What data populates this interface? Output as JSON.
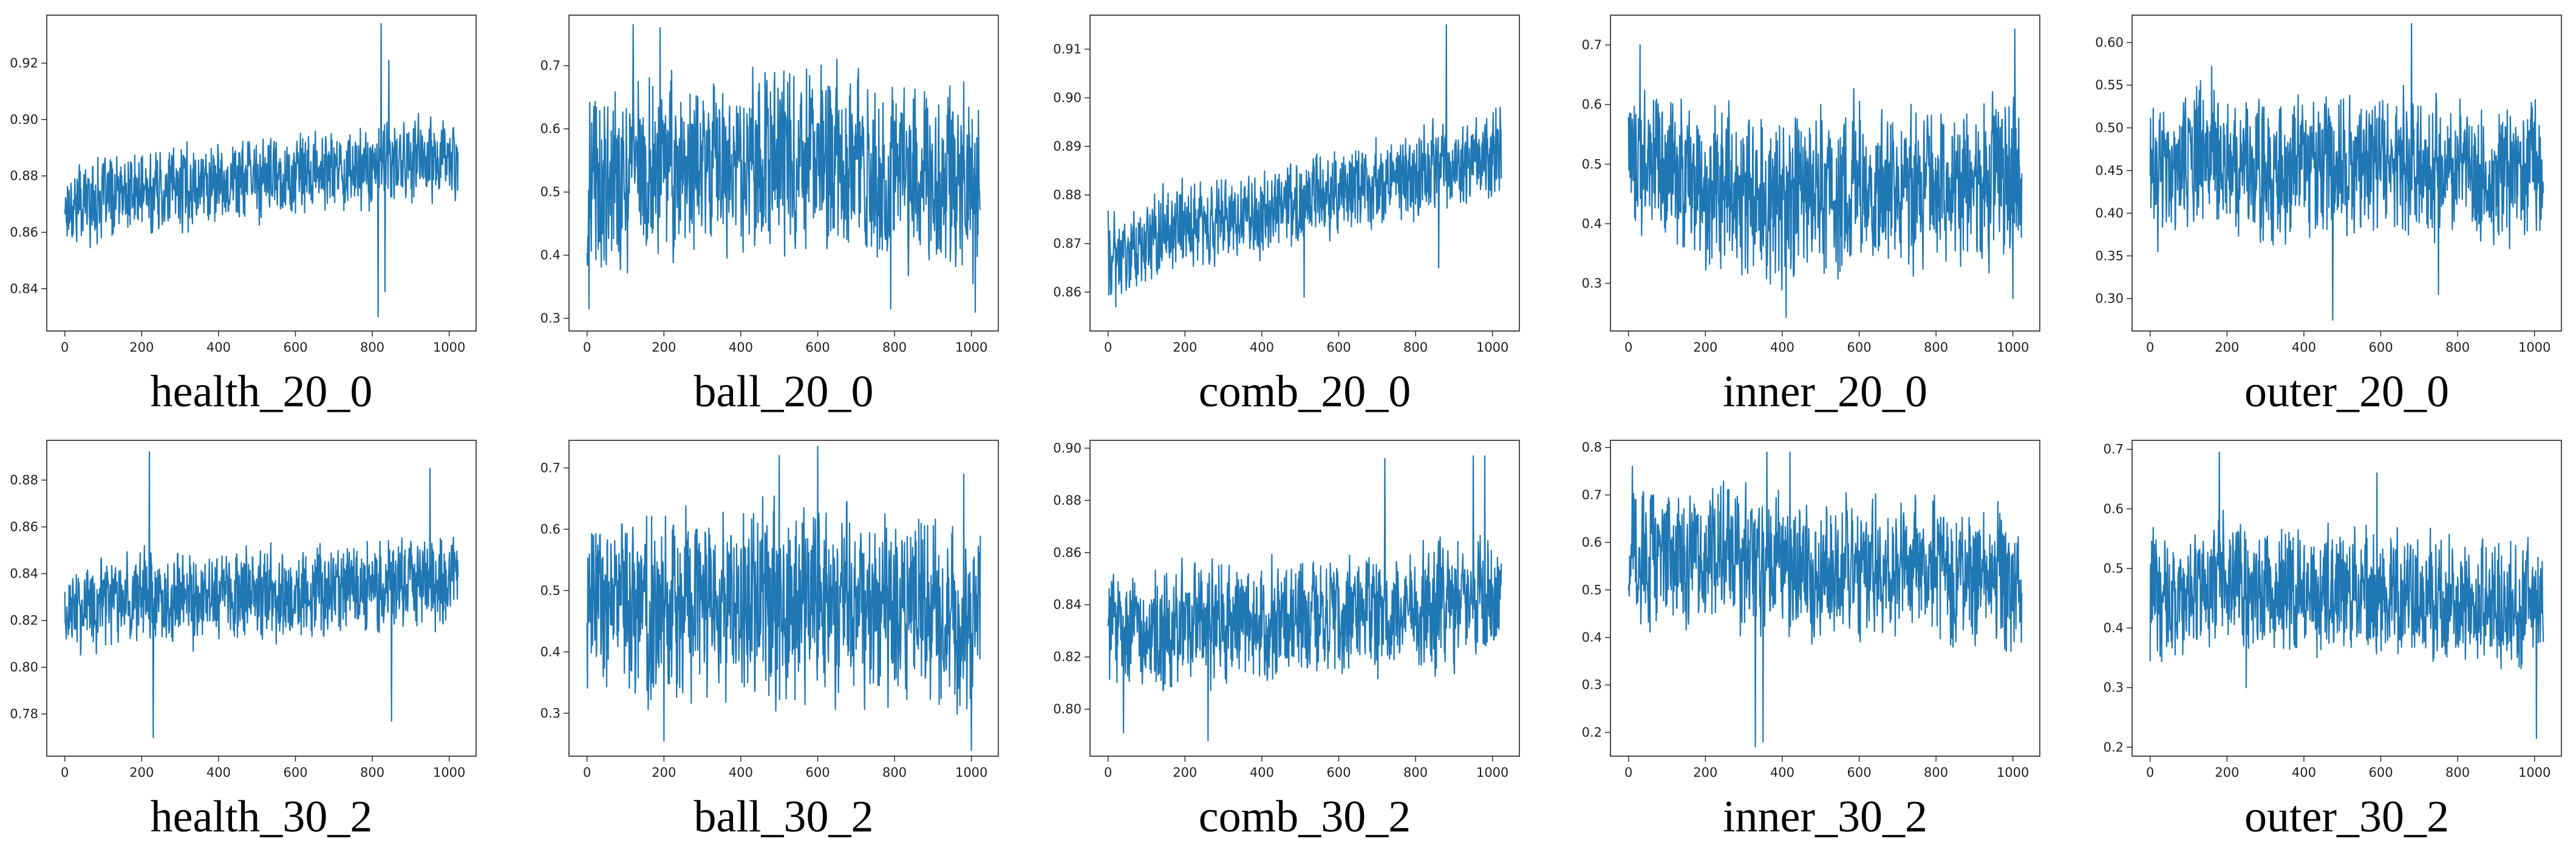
{
  "figure": {
    "line_color": "#1f77b4",
    "layout": "2 rows x 5 columns"
  },
  "chart_data": [
    {
      "type": "line",
      "title": "health_20_0",
      "x_range": [
        0,
        1023
      ],
      "xticks": [
        "0",
        "200",
        "400",
        "600",
        "800",
        "1000"
      ],
      "yticks": [
        "0.84",
        "0.86",
        "0.88",
        "0.90",
        "0.92"
      ],
      "ylim": [
        0.825,
        0.937
      ],
      "series": [
        {
          "name": "health_20_0",
          "trend": [
            [
              0,
              0.87
            ],
            [
              200,
              0.874
            ],
            [
              400,
              0.878
            ],
            [
              600,
              0.88
            ],
            [
              800,
              0.884
            ],
            [
              1000,
              0.886
            ],
            [
              1023,
              0.887
            ]
          ],
          "amplitude": 0.018,
          "spikes": [
            [
              823,
              0.934
            ],
            [
              815,
              0.83
            ],
            [
              843,
              0.921
            ],
            [
              833,
              0.839
            ]
          ]
        }
      ]
    },
    {
      "type": "line",
      "title": "ball_20_0",
      "x_range": [
        0,
        1023
      ],
      "xticks": [
        "0",
        "200",
        "400",
        "600",
        "800",
        "1000"
      ],
      "yticks": [
        "0.3",
        "0.4",
        "0.5",
        "0.6",
        "0.7"
      ],
      "ylim": [
        0.28,
        0.78
      ],
      "series": [
        {
          "name": "ball_20_0",
          "trend": [
            [
              0,
              0.5
            ],
            [
              200,
              0.55
            ],
            [
              400,
              0.54
            ],
            [
              600,
              0.55
            ],
            [
              800,
              0.53
            ],
            [
              1000,
              0.52
            ],
            [
              1023,
              0.52
            ]
          ],
          "amplitude": 0.18,
          "spikes": [
            [
              120,
              0.765
            ],
            [
              190,
              0.76
            ],
            [
              5,
              0.315
            ],
            [
              790,
              0.315
            ],
            [
              1010,
              0.31
            ],
            [
              650,
              0.71
            ]
          ]
        }
      ]
    },
    {
      "type": "line",
      "title": "comb_20_0",
      "x_range": [
        0,
        1023
      ],
      "xticks": [
        "0",
        "200",
        "400",
        "600",
        "800",
        "1000"
      ],
      "yticks": [
        "0.86",
        "0.87",
        "0.88",
        "0.89",
        "0.90",
        "0.91"
      ],
      "ylim": [
        0.852,
        0.917
      ],
      "series": [
        {
          "name": "comb_20_0",
          "trend": [
            [
              0,
              0.867
            ],
            [
              200,
              0.874
            ],
            [
              400,
              0.877
            ],
            [
              600,
              0.881
            ],
            [
              800,
              0.884
            ],
            [
              1000,
              0.889
            ],
            [
              1023,
              0.89
            ]
          ],
          "amplitude": 0.011,
          "spikes": [
            [
              880,
              0.915
            ],
            [
              20,
              0.857
            ],
            [
              510,
              0.859
            ],
            [
              860,
              0.865
            ]
          ]
        }
      ]
    },
    {
      "type": "line",
      "title": "inner_20_0",
      "x_range": [
        0,
        1023
      ],
      "xticks": [
        "0",
        "200",
        "400",
        "600",
        "800",
        "1000"
      ],
      "yticks": [
        "0.3",
        "0.4",
        "0.5",
        "0.6",
        "0.7"
      ],
      "ylim": [
        0.22,
        0.75
      ],
      "series": [
        {
          "name": "inner_20_0",
          "trend": [
            [
              0,
              0.5
            ],
            [
              200,
              0.46
            ],
            [
              400,
              0.44
            ],
            [
              600,
              0.47
            ],
            [
              800,
              0.45
            ],
            [
              1000,
              0.47
            ],
            [
              1023,
              0.47
            ]
          ],
          "amplitude": 0.17,
          "spikes": [
            [
              1005,
              0.727
            ],
            [
              30,
              0.7
            ],
            [
              410,
              0.243
            ],
            [
              1000,
              0.275
            ],
            [
              500,
              0.6
            ]
          ]
        }
      ]
    },
    {
      "type": "line",
      "title": "outer_20_0",
      "x_range": [
        0,
        1023
      ],
      "xticks": [
        "0",
        "200",
        "400",
        "600",
        "800",
        "1000"
      ],
      "yticks": [
        "0.30",
        "0.35",
        "0.40",
        "0.45",
        "0.50",
        "0.55",
        "0.60"
      ],
      "ylim": [
        0.262,
        0.632
      ],
      "series": [
        {
          "name": "outer_20_0",
          "trend": [
            [
              0,
              0.44
            ],
            [
              150,
              0.47
            ],
            [
              300,
              0.45
            ],
            [
              500,
              0.46
            ],
            [
              700,
              0.46
            ],
            [
              850,
              0.44
            ],
            [
              1023,
              0.45
            ]
          ],
          "amplitude": 0.1,
          "spikes": [
            [
              680,
              0.622
            ],
            [
              160,
              0.572
            ],
            [
              475,
              0.275
            ],
            [
              20,
              0.355
            ],
            [
              750,
              0.305
            ]
          ]
        }
      ]
    },
    {
      "type": "line",
      "title": "health_30_2",
      "x_range": [
        0,
        1023
      ],
      "xticks": [
        "0",
        "200",
        "400",
        "600",
        "800",
        "1000"
      ],
      "yticks": [
        "0.78",
        "0.80",
        "0.82",
        "0.84",
        "0.86",
        "0.88"
      ],
      "ylim": [
        0.762,
        0.897
      ],
      "series": [
        {
          "name": "health_30_2",
          "trend": [
            [
              0,
              0.826
            ],
            [
              200,
              0.829
            ],
            [
              400,
              0.831
            ],
            [
              600,
              0.833
            ],
            [
              800,
              0.834
            ],
            [
              1000,
              0.838
            ],
            [
              1023,
              0.838
            ]
          ],
          "amplitude": 0.025,
          "spikes": [
            [
              220,
              0.892
            ],
            [
              230,
              0.77
            ],
            [
              850,
              0.777
            ],
            [
              950,
              0.885
            ]
          ]
        }
      ]
    },
    {
      "type": "line",
      "title": "ball_30_2",
      "x_range": [
        0,
        1023
      ],
      "xticks": [
        "0",
        "200",
        "400",
        "600",
        "800",
        "1000"
      ],
      "yticks": [
        "0.3",
        "0.4",
        "0.5",
        "0.6",
        "0.7"
      ],
      "ylim": [
        0.23,
        0.745
      ],
      "series": [
        {
          "name": "ball_30_2",
          "trend": [
            [
              0,
              0.48
            ],
            [
              200,
              0.47
            ],
            [
              400,
              0.48
            ],
            [
              600,
              0.48
            ],
            [
              800,
              0.47
            ],
            [
              1000,
              0.45
            ],
            [
              1023,
              0.45
            ]
          ],
          "amplitude": 0.19,
          "spikes": [
            [
              600,
              0.735
            ],
            [
              500,
              0.72
            ],
            [
              1000,
              0.24
            ],
            [
              200,
              0.255
            ],
            [
              980,
              0.69
            ]
          ]
        }
      ]
    },
    {
      "type": "line",
      "title": "comb_30_2",
      "x_range": [
        0,
        1023
      ],
      "xticks": [
        "0",
        "200",
        "400",
        "600",
        "800",
        "1000"
      ],
      "yticks": [
        "0.80",
        "0.82",
        "0.84",
        "0.86",
        "0.88",
        "0.90"
      ],
      "ylim": [
        0.782,
        0.903
      ],
      "series": [
        {
          "name": "comb_30_2",
          "trend": [
            [
              0,
              0.831
            ],
            [
              200,
              0.832
            ],
            [
              400,
              0.834
            ],
            [
              600,
              0.836
            ],
            [
              800,
              0.838
            ],
            [
              1000,
              0.844
            ],
            [
              1023,
              0.845
            ]
          ],
          "amplitude": 0.028,
          "spikes": [
            [
              950,
              0.897
            ],
            [
              980,
              0.897
            ],
            [
              720,
              0.896
            ],
            [
              260,
              0.788
            ],
            [
              40,
              0.791
            ]
          ]
        }
      ]
    },
    {
      "type": "line",
      "title": "inner_30_2",
      "x_range": [
        0,
        1023
      ],
      "xticks": [
        "0",
        "200",
        "400",
        "600",
        "800",
        "1000"
      ],
      "yticks": [
        "0.2",
        "0.3",
        "0.4",
        "0.5",
        "0.6",
        "0.7",
        "0.8"
      ],
      "ylim": [
        0.15,
        0.815
      ],
      "series": [
        {
          "name": "inner_30_2",
          "trend": [
            [
              0,
              0.57
            ],
            [
              200,
              0.57
            ],
            [
              400,
              0.55
            ],
            [
              600,
              0.55
            ],
            [
              800,
              0.53
            ],
            [
              1000,
              0.52
            ],
            [
              1023,
              0.52
            ]
          ],
          "amplitude": 0.18,
          "spikes": [
            [
              360,
              0.79
            ],
            [
              420,
              0.79
            ],
            [
              330,
              0.17
            ],
            [
              350,
              0.18
            ],
            [
              10,
              0.76
            ]
          ]
        }
      ]
    },
    {
      "type": "line",
      "title": "outer_30_2",
      "x_range": [
        0,
        1023
      ],
      "xticks": [
        "0",
        "200",
        "400",
        "600",
        "800",
        "1000"
      ],
      "yticks": [
        "0.2",
        "0.3",
        "0.4",
        "0.5",
        "0.6",
        "0.7"
      ],
      "ylim": [
        0.185,
        0.715
      ],
      "series": [
        {
          "name": "outer_30_2",
          "trend": [
            [
              0,
              0.45
            ],
            [
              200,
              0.48
            ],
            [
              400,
              0.46
            ],
            [
              600,
              0.46
            ],
            [
              800,
              0.45
            ],
            [
              1000,
              0.44
            ],
            [
              1023,
              0.44
            ]
          ],
          "amplitude": 0.13,
          "spikes": [
            [
              180,
              0.695
            ],
            [
              1005,
              0.215
            ],
            [
              590,
              0.66
            ],
            [
              250,
              0.3
            ]
          ]
        }
      ]
    }
  ]
}
